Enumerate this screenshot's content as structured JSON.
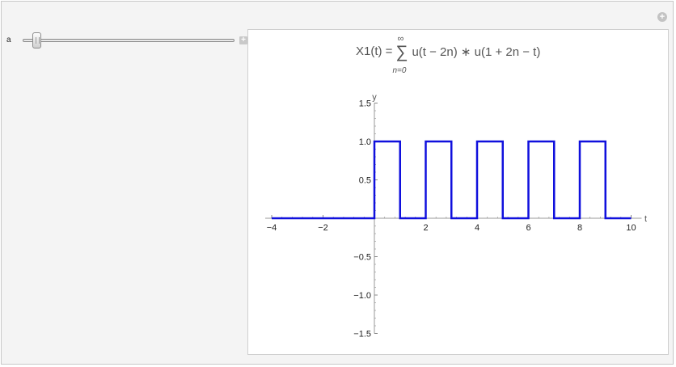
{
  "controls": {
    "parameter_label": "a",
    "slider_fraction": 0.06,
    "expand_symbol": "+",
    "add_symbol": "+"
  },
  "formula": {
    "lhs": "X1(t) = ",
    "sum_upper": "∞",
    "sum_symbol": "∑",
    "sum_lower": "n=0",
    "rhs": "u(t − 2n) ∗ u(1 + 2n − t)"
  },
  "chart_data": {
    "type": "line",
    "xlabel": "t",
    "ylabel": "y",
    "xlim": [
      -4,
      10
    ],
    "ylim": [
      -1.5,
      1.5
    ],
    "x_ticks": [
      -4,
      -2,
      2,
      4,
      6,
      8,
      10
    ],
    "x_tick_labels": [
      "−4",
      "−2",
      "2",
      "4",
      "6",
      "8",
      "10"
    ],
    "y_ticks": [
      1.5,
      1.0,
      0.5,
      -0.5,
      -1.0,
      -1.5
    ],
    "y_tick_labels": [
      "1.5",
      "1.0",
      "0.5",
      "−0.5",
      "−1.0",
      "−1.5"
    ],
    "series_color": "#1010dd",
    "series": [
      {
        "x": [
          -4,
          0,
          0,
          1,
          1,
          2,
          2,
          3,
          3,
          4,
          4,
          5,
          5,
          6,
          6,
          7,
          7,
          8,
          8,
          9,
          9,
          10
        ],
        "y": [
          0,
          0,
          1,
          1,
          0,
          0,
          1,
          1,
          0,
          0,
          1,
          1,
          0,
          0,
          1,
          1,
          0,
          0,
          1,
          1,
          0,
          0
        ]
      }
    ]
  }
}
